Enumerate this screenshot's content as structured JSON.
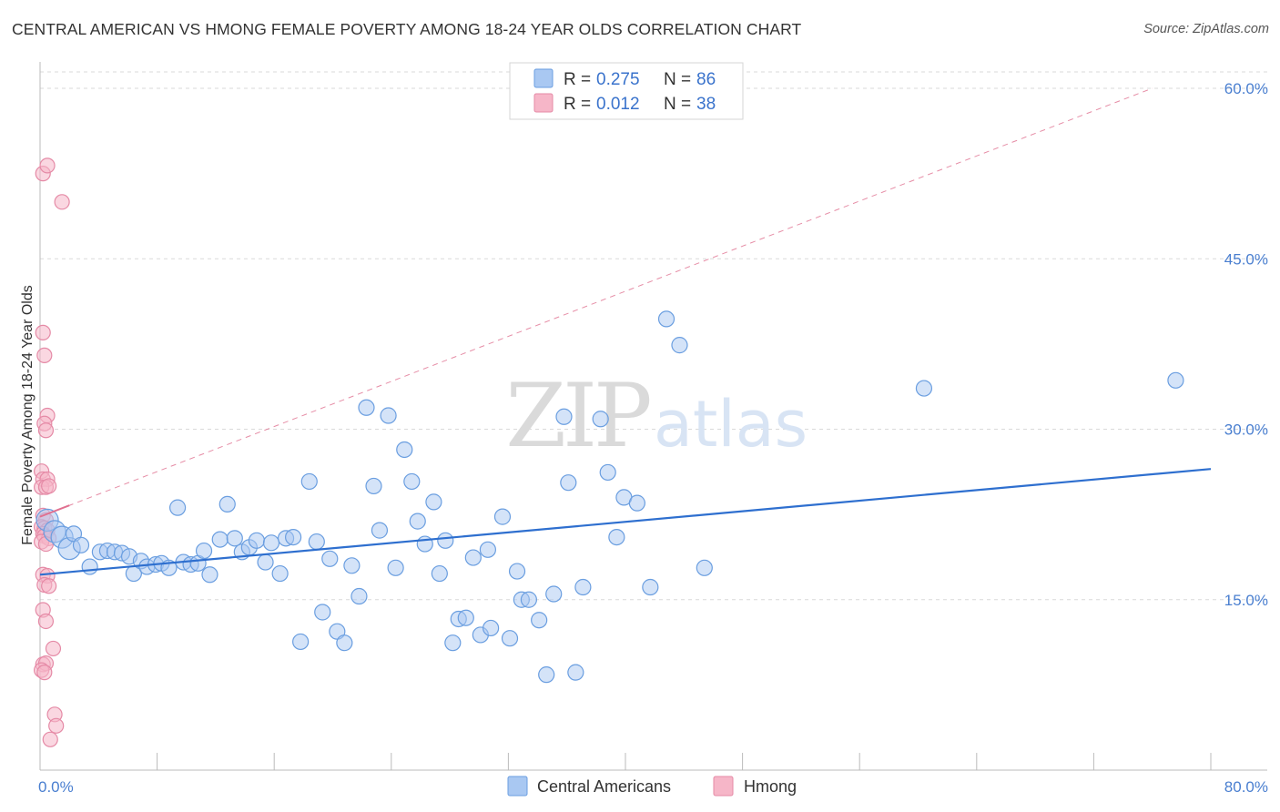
{
  "title": "CENTRAL AMERICAN VS HMONG FEMALE POVERTY AMONG 18-24 YEAR OLDS CORRELATION CHART",
  "source": "Source: ZipAtlas.com",
  "watermark": {
    "zip": "ZIP",
    "atlas": "atlas"
  },
  "colors": {
    "blue_fill": "#a9c8f2",
    "blue_stroke": "#6a9ee0",
    "blue_line": "#2e6fcf",
    "pink_fill": "#f6b6c8",
    "pink_stroke": "#e58aa6",
    "pink_line": "#e07090",
    "grid": "#d9d9d9",
    "axis_label": "#4a7fd0"
  },
  "legend": {
    "rows": [
      {
        "r_label": "R = ",
        "r_value": "0.275",
        "n_label": "N = ",
        "n_value": "86",
        "swatch": "blue"
      },
      {
        "r_label": "R = ",
        "r_value": "0.012",
        "n_label": "N = ",
        "n_value": "38",
        "swatch": "pink"
      }
    ]
  },
  "bottom_legend": [
    {
      "label": "Central Americans",
      "swatch": "blue"
    },
    {
      "label": "Hmong",
      "swatch": "pink"
    }
  ],
  "chart_data": {
    "type": "scatter",
    "xlabel": "",
    "ylabel": "Female Poverty Among 18-24 Year Olds",
    "xlim": [
      0,
      80
    ],
    "ylim": [
      0,
      60
    ],
    "y_ticks": [
      {
        "value": 15,
        "label": "15.0%"
      },
      {
        "value": 30,
        "label": "30.0%"
      },
      {
        "value": 45,
        "label": "45.0%"
      },
      {
        "value": 60,
        "label": "60.0%"
      }
    ],
    "x_tick_labels": [
      {
        "value": 0,
        "label": "0.0%"
      },
      {
        "value": 80,
        "label": "80.0%"
      }
    ],
    "x_minor_ticks": [
      8,
      16,
      24,
      32,
      40,
      48,
      56,
      64,
      72,
      80
    ],
    "grid": true,
    "series": [
      {
        "name": "Central Americans",
        "color": "blue",
        "points": [
          [
            0.5,
            22.0
          ],
          [
            1.0,
            21.0
          ],
          [
            1.5,
            20.5
          ],
          [
            2.0,
            19.5
          ],
          [
            2.3,
            20.8
          ],
          [
            2.8,
            19.8
          ],
          [
            3.4,
            17.9
          ],
          [
            4.1,
            19.2
          ],
          [
            4.6,
            19.3
          ],
          [
            5.1,
            19.2
          ],
          [
            5.6,
            19.1
          ],
          [
            6.1,
            18.8
          ],
          [
            6.4,
            17.3
          ],
          [
            6.9,
            18.4
          ],
          [
            7.3,
            17.9
          ],
          [
            7.9,
            18.1
          ],
          [
            8.3,
            18.2
          ],
          [
            8.8,
            17.8
          ],
          [
            9.4,
            23.1
          ],
          [
            9.8,
            18.3
          ],
          [
            10.3,
            18.1
          ],
          [
            10.8,
            18.2
          ],
          [
            11.2,
            19.3
          ],
          [
            11.6,
            17.2
          ],
          [
            12.3,
            20.3
          ],
          [
            12.8,
            23.4
          ],
          [
            13.3,
            20.4
          ],
          [
            13.8,
            19.2
          ],
          [
            14.3,
            19.6
          ],
          [
            14.8,
            20.2
          ],
          [
            15.4,
            18.3
          ],
          [
            15.8,
            20.0
          ],
          [
            16.4,
            17.3
          ],
          [
            16.8,
            20.4
          ],
          [
            17.3,
            20.5
          ],
          [
            17.8,
            11.3
          ],
          [
            18.4,
            25.4
          ],
          [
            18.9,
            20.1
          ],
          [
            19.3,
            13.9
          ],
          [
            19.8,
            18.6
          ],
          [
            20.3,
            12.2
          ],
          [
            20.8,
            11.2
          ],
          [
            21.3,
            18.0
          ],
          [
            21.8,
            15.3
          ],
          [
            22.3,
            31.9
          ],
          [
            22.8,
            25.0
          ],
          [
            23.2,
            21.1
          ],
          [
            23.8,
            31.2
          ],
          [
            24.3,
            17.8
          ],
          [
            24.9,
            28.2
          ],
          [
            25.4,
            25.4
          ],
          [
            25.8,
            21.9
          ],
          [
            26.3,
            19.9
          ],
          [
            26.9,
            23.6
          ],
          [
            27.3,
            17.3
          ],
          [
            27.7,
            20.2
          ],
          [
            28.2,
            11.2
          ],
          [
            28.6,
            13.3
          ],
          [
            29.1,
            13.4
          ],
          [
            29.6,
            18.7
          ],
          [
            30.1,
            11.9
          ],
          [
            30.6,
            19.4
          ],
          [
            30.8,
            12.5
          ],
          [
            31.6,
            22.3
          ],
          [
            32.1,
            11.6
          ],
          [
            32.6,
            17.5
          ],
          [
            32.9,
            15.0
          ],
          [
            33.4,
            15.0
          ],
          [
            34.1,
            13.2
          ],
          [
            34.6,
            8.4
          ],
          [
            35.1,
            15.5
          ],
          [
            35.8,
            31.1
          ],
          [
            36.1,
            25.3
          ],
          [
            36.6,
            8.6
          ],
          [
            37.1,
            16.1
          ],
          [
            38.3,
            30.9
          ],
          [
            38.8,
            26.2
          ],
          [
            39.4,
            20.5
          ],
          [
            39.9,
            24.0
          ],
          [
            40.8,
            23.5
          ],
          [
            41.7,
            16.1
          ],
          [
            42.8,
            39.7
          ],
          [
            43.7,
            37.4
          ],
          [
            45.4,
            17.8
          ],
          [
            60.4,
            33.6
          ],
          [
            77.6,
            34.3
          ]
        ],
        "trend": {
          "x": [
            0,
            80
          ],
          "y": [
            17.2,
            26.5
          ]
        }
      },
      {
        "name": "Hmong",
        "color": "pink",
        "points": [
          [
            0.2,
            52.5
          ],
          [
            0.5,
            53.2
          ],
          [
            1.5,
            50.0
          ],
          [
            0.2,
            38.5
          ],
          [
            0.3,
            36.5
          ],
          [
            0.5,
            31.2
          ],
          [
            0.3,
            30.5
          ],
          [
            0.4,
            29.9
          ],
          [
            0.1,
            26.3
          ],
          [
            0.2,
            25.6
          ],
          [
            0.5,
            25.6
          ],
          [
            0.1,
            24.9
          ],
          [
            0.4,
            24.9
          ],
          [
            0.6,
            25.0
          ],
          [
            0.2,
            22.4
          ],
          [
            0.4,
            22.0
          ],
          [
            0.1,
            21.4
          ],
          [
            0.3,
            21.3
          ],
          [
            0.5,
            21.1
          ],
          [
            0.2,
            20.8
          ],
          [
            0.3,
            20.6
          ],
          [
            0.6,
            20.4
          ],
          [
            0.1,
            20.1
          ],
          [
            0.4,
            19.9
          ],
          [
            0.2,
            17.2
          ],
          [
            0.5,
            17.1
          ],
          [
            0.3,
            16.3
          ],
          [
            0.6,
            16.2
          ],
          [
            0.2,
            14.1
          ],
          [
            0.4,
            13.1
          ],
          [
            0.9,
            10.7
          ],
          [
            0.2,
            9.3
          ],
          [
            0.4,
            9.4
          ],
          [
            0.1,
            8.8
          ],
          [
            0.3,
            8.6
          ],
          [
            1.0,
            4.9
          ],
          [
            1.1,
            3.9
          ],
          [
            0.7,
            2.7
          ]
        ],
        "trend": {
          "x": [
            0,
            76
          ],
          "y": [
            22.3,
            60.0
          ]
        }
      }
    ]
  }
}
